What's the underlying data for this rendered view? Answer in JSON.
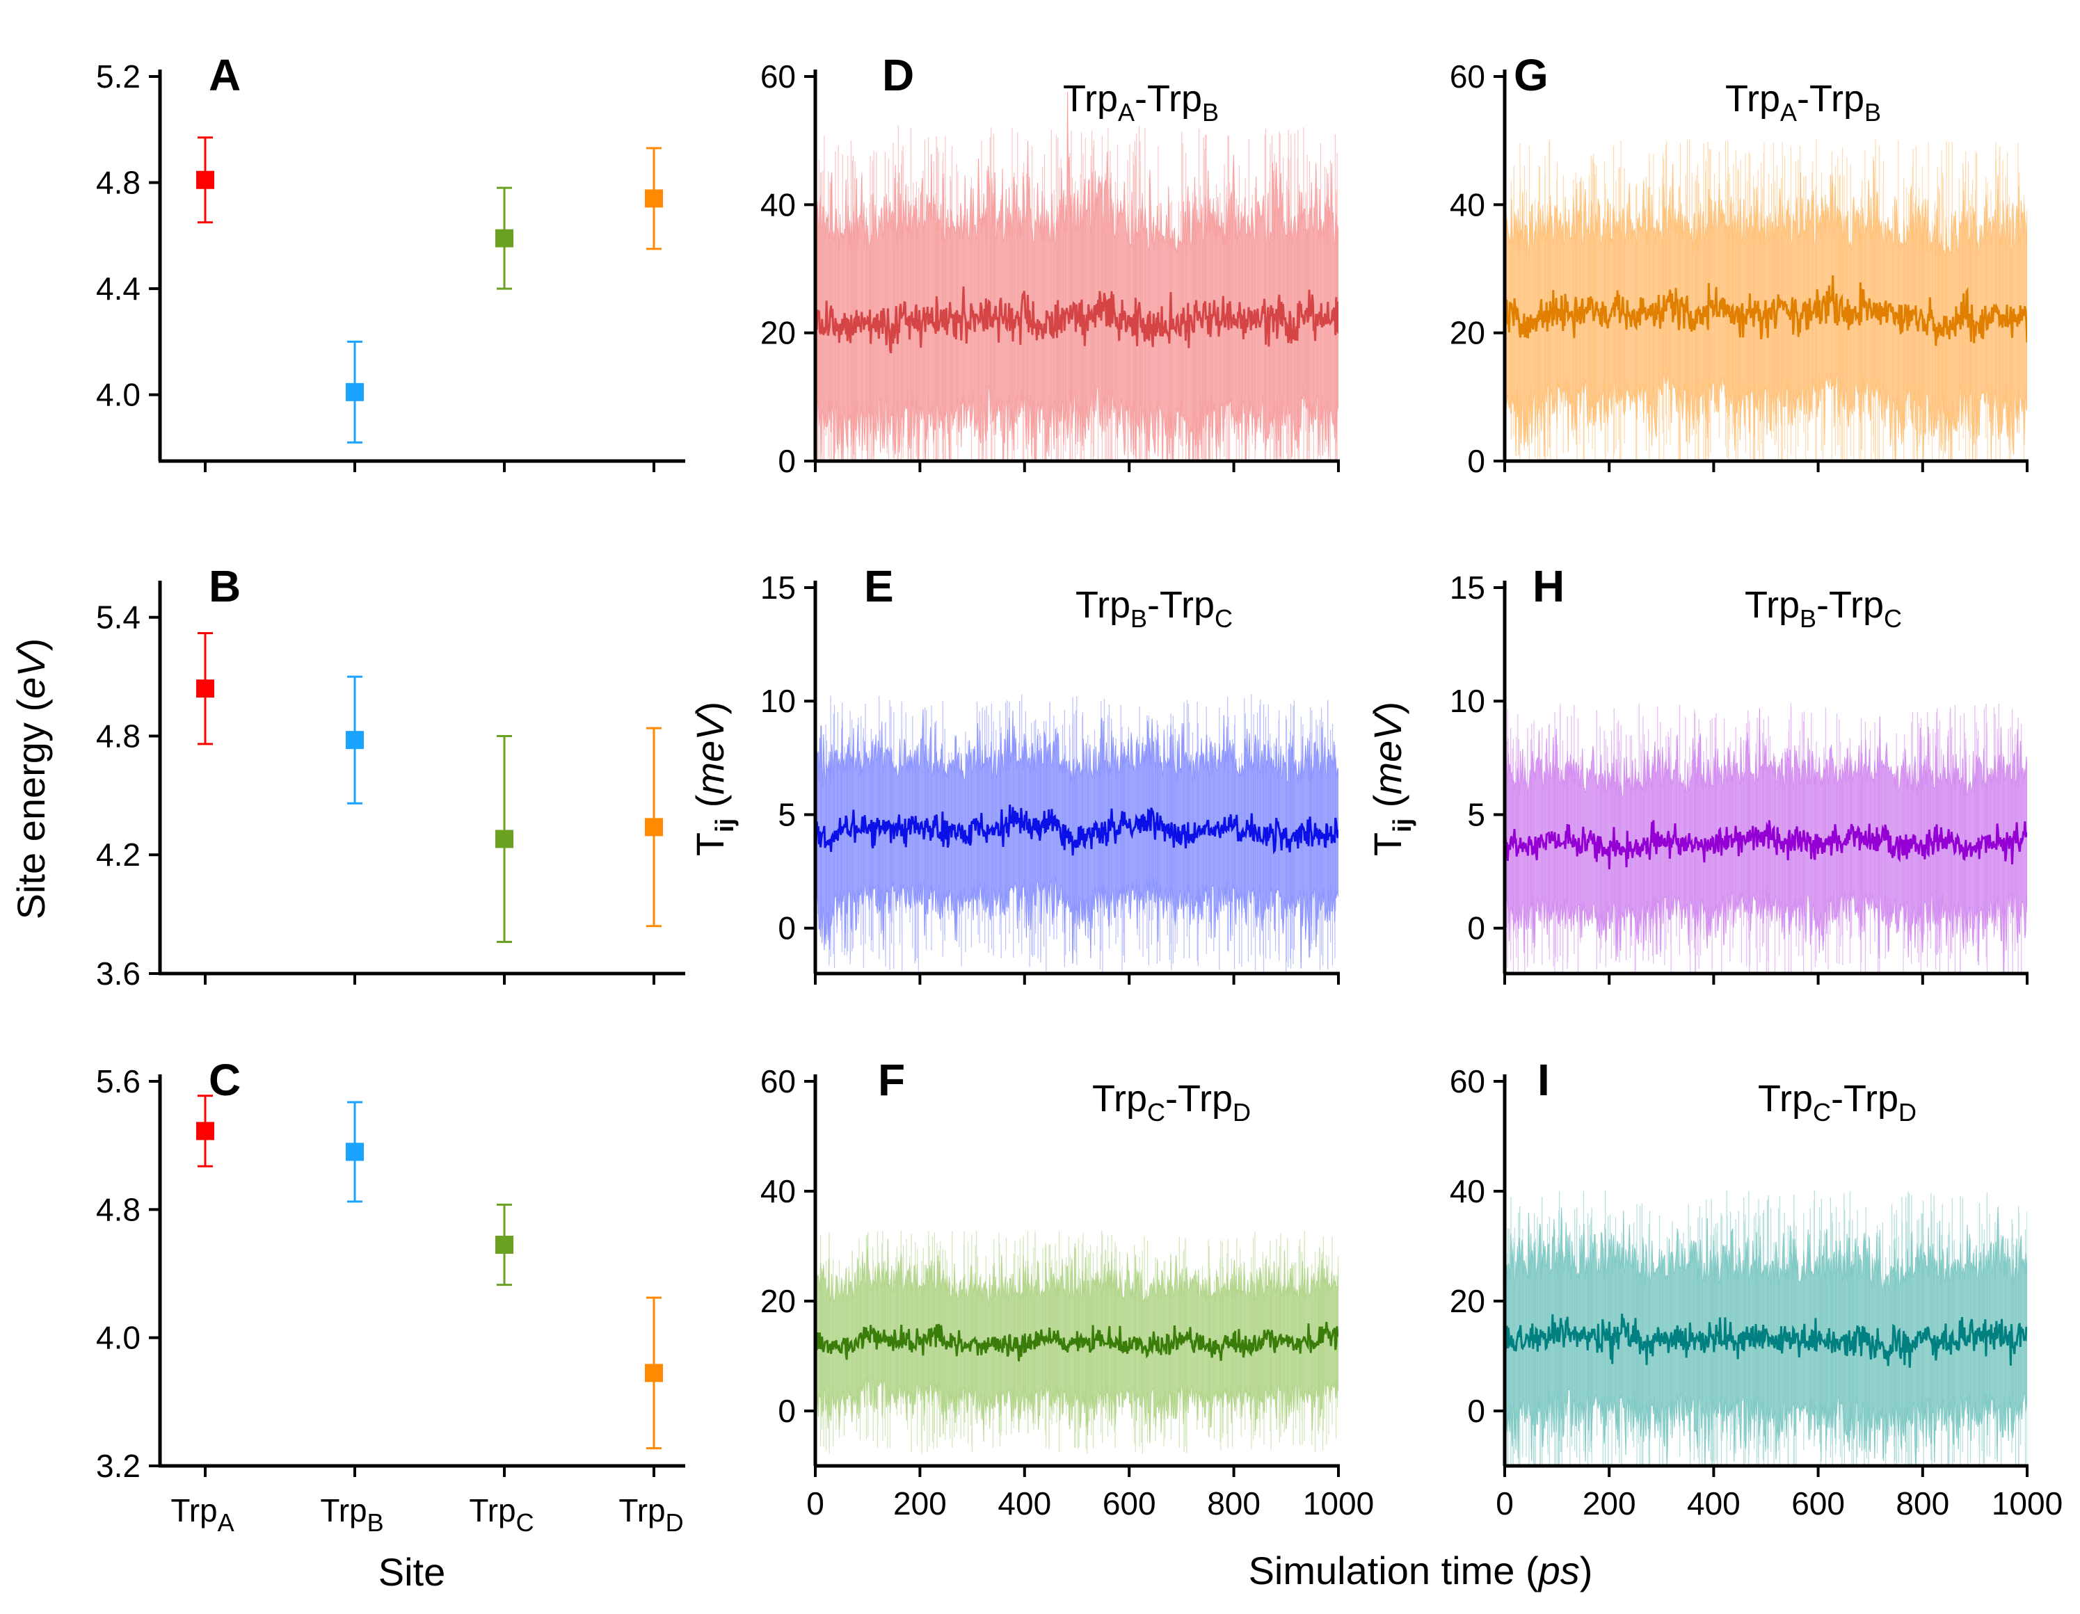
{
  "figure": {
    "left_ylabel": {
      "main": "Site energy ",
      "unit": "eV"
    },
    "mid_ylabel": {
      "main": "T",
      "sub": "ij",
      "unit": "meV"
    },
    "left_xlabel": "Site",
    "time_xlabel": {
      "main": "Simulation time ",
      "unit": "ps"
    }
  },
  "site_labels": [
    {
      "base": "Trp",
      "sub": "A"
    },
    {
      "base": "Trp",
      "sub": "B"
    },
    {
      "base": "Trp",
      "sub": "C"
    },
    {
      "base": "Trp",
      "sub": "D"
    }
  ],
  "colors": {
    "TrpA": "#ff0000",
    "TrpB": "#1aa3ff",
    "TrpC": "#6aa121",
    "TrpD": "#ff8a00",
    "D_mean": "#d64545",
    "D_band": "#f7a0a0",
    "G_mean": "#e07f00",
    "G_band": "#ffc27a",
    "E_mean": "#0a10e6",
    "E_band": "#8c95ff",
    "H_mean": "#9400d3",
    "H_band": "#d38ef0",
    "F_mean": "#3a7d0a",
    "F_band": "#b2d58a",
    "I_mean": "#008080",
    "I_band": "#80c9c4"
  },
  "chart_data": [
    {
      "id": "A",
      "type": "scatter-errorbar",
      "panel_label": "A",
      "categories": [
        "TrpA",
        "TrpB",
        "TrpC",
        "TrpD"
      ],
      "values": [
        4.81,
        4.01,
        4.59,
        4.74
      ],
      "errors": [
        0.16,
        0.19,
        0.19,
        0.19
      ],
      "ylim": [
        3.75,
        5.2
      ],
      "yticks": [
        "4.0",
        "4.4",
        "4.8",
        "5.2"
      ]
    },
    {
      "id": "B",
      "type": "scatter-errorbar",
      "panel_label": "B",
      "categories": [
        "TrpA",
        "TrpB",
        "TrpC",
        "TrpD"
      ],
      "values": [
        5.04,
        4.78,
        4.28,
        4.34
      ],
      "errors": [
        0.28,
        0.32,
        0.52,
        0.5
      ],
      "ylim": [
        3.6,
        5.55
      ],
      "yticks": [
        "3.6",
        "4.2",
        "4.8",
        "5.4"
      ]
    },
    {
      "id": "C",
      "type": "scatter-errorbar",
      "panel_label": "C",
      "categories": [
        "TrpA",
        "TrpB",
        "TrpC",
        "TrpD"
      ],
      "values": [
        5.29,
        5.16,
        4.58,
        3.78
      ],
      "errors": [
        0.22,
        0.31,
        0.25,
        0.47
      ],
      "ylim": [
        3.2,
        5.6
      ],
      "yticks": [
        "3.2",
        "4.0",
        "4.8",
        "5.6"
      ]
    },
    {
      "id": "D",
      "type": "line",
      "panel_label": "D",
      "mean": 22,
      "band_sd": 9,
      "title": {
        "a": "Trp",
        "a_sub": "A",
        "dash": "-",
        "b": "Trp",
        "b_sub": "B"
      },
      "xlim": [
        0,
        1000
      ],
      "ylim": [
        0,
        60
      ],
      "yticks": [
        "0",
        "20",
        "40",
        "60"
      ]
    },
    {
      "id": "E",
      "type": "line",
      "panel_label": "E",
      "mean": 4.2,
      "band_sd": 1.8,
      "title": {
        "a": "Trp",
        "a_sub": "B",
        "dash": "-",
        "b": "Trp",
        "b_sub": "C"
      },
      "xlim": [
        0,
        1000
      ],
      "ylim": [
        -2,
        15
      ],
      "yticks": [
        "0",
        "5",
        "10",
        "15"
      ]
    },
    {
      "id": "F",
      "type": "line",
      "panel_label": "F",
      "mean": 12.5,
      "band_sd": 6,
      "title": {
        "a": "Trp",
        "a_sub": "C",
        "dash": "-",
        "b": "Trp",
        "b_sub": "D"
      },
      "xlim": [
        0,
        1000
      ],
      "ylim": [
        -10,
        60
      ],
      "yticks": [
        "0",
        "20",
        "40",
        "60"
      ],
      "xticks": [
        "0",
        "200",
        "400",
        "600",
        "800",
        "1000"
      ]
    },
    {
      "id": "G",
      "type": "line",
      "panel_label": "G",
      "mean": 23,
      "band_sd": 8,
      "title": {
        "a": "Trp",
        "a_sub": "A",
        "dash": "-",
        "b": "Trp",
        "b_sub": "B"
      },
      "xlim": [
        0,
        1000
      ],
      "ylim": [
        0,
        60
      ],
      "yticks": [
        "0",
        "20",
        "40",
        "60"
      ]
    },
    {
      "id": "H",
      "type": "line",
      "panel_label": "H",
      "mean": 3.8,
      "band_sd": 1.8,
      "title": {
        "a": "Trp",
        "a_sub": "B",
        "dash": "-",
        "b": "Trp",
        "b_sub": "C"
      },
      "xlim": [
        0,
        1000
      ],
      "ylim": [
        -2,
        15
      ],
      "yticks": [
        "0",
        "5",
        "10",
        "15"
      ]
    },
    {
      "id": "I",
      "type": "line",
      "panel_label": "I",
      "mean": 13,
      "band_sd": 8,
      "title": {
        "a": "Trp",
        "a_sub": "C",
        "dash": "-",
        "b": "Trp",
        "b_sub": "D"
      },
      "xlim": [
        0,
        1000
      ],
      "ylim": [
        -10,
        60
      ],
      "yticks": [
        "0",
        "20",
        "40",
        "60"
      ],
      "xticks": [
        "0",
        "200",
        "400",
        "600",
        "800",
        "1000"
      ]
    }
  ]
}
